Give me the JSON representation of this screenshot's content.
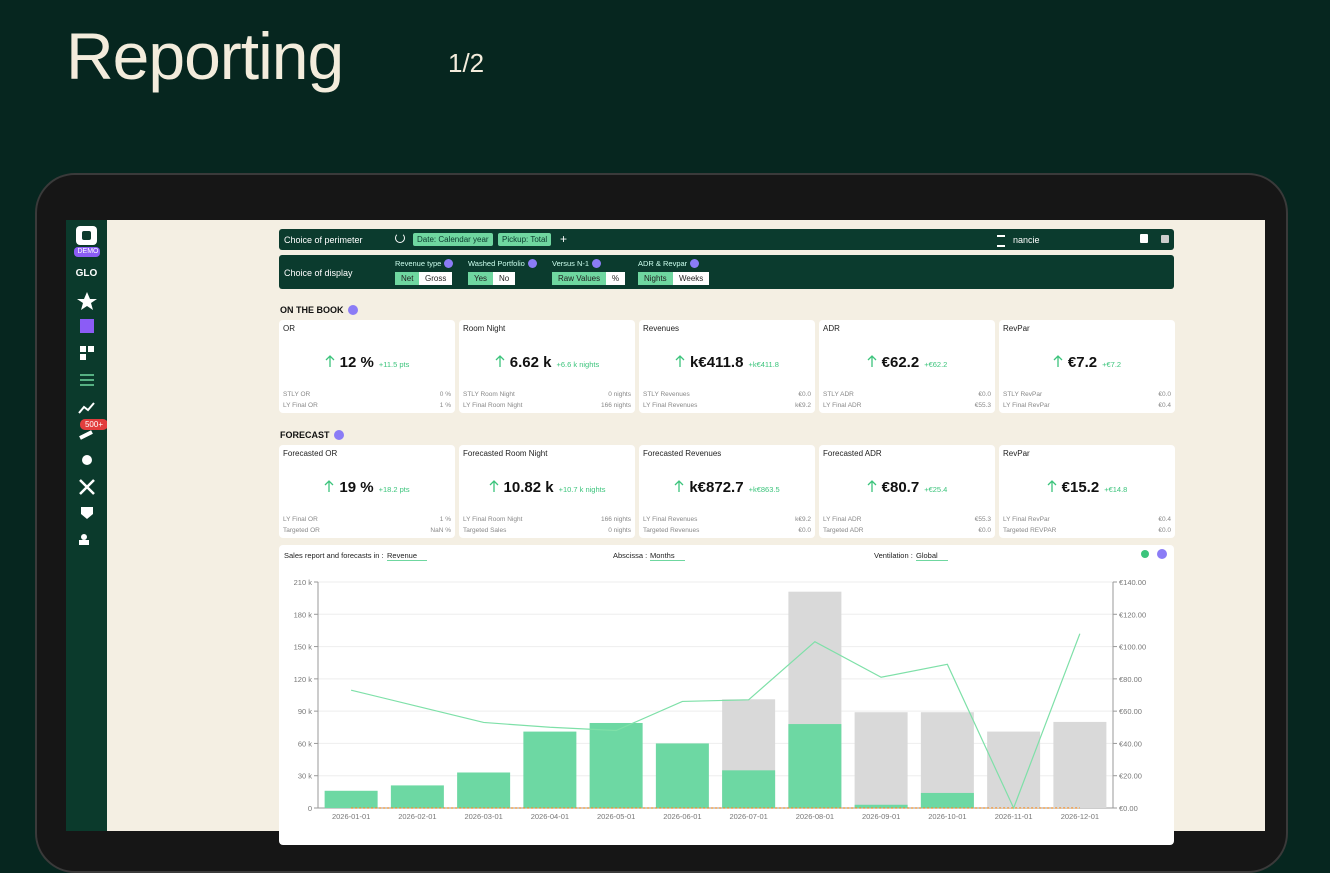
{
  "header": {
    "title": "Reporting",
    "page": "1/2"
  },
  "sidebar": {
    "badge": "DEMO",
    "workspace": "GLO",
    "notification": "500+"
  },
  "perimeter": {
    "label": "Choice of perimeter",
    "chips": [
      "Date: Calendar year",
      "Pickup: Total"
    ],
    "add": "+",
    "user": "nancie"
  },
  "display": {
    "label": "Choice of display",
    "groups": [
      {
        "title": "Revenue type",
        "options": [
          "Net",
          "Gross"
        ]
      },
      {
        "title": "Washed Portfolio",
        "options": [
          "Yes",
          "No"
        ]
      },
      {
        "title": "Versus N-1",
        "options": [
          "Raw Values",
          "%"
        ]
      },
      {
        "title": "ADR & Revpar",
        "options": [
          "Nights",
          "Weeks"
        ]
      }
    ]
  },
  "on_the_book": {
    "title": "ON THE BOOK",
    "cards": [
      {
        "title": "OR",
        "value": "12 %",
        "delta": "+11.5 pts",
        "rows": [
          [
            "STLY OR",
            "0 %"
          ],
          [
            "LY Final OR",
            "1 %"
          ]
        ]
      },
      {
        "title": "Room Night",
        "value": "6.62 k",
        "delta": "+6.6 k nights",
        "rows": [
          [
            "STLY Room Night",
            "0 nights"
          ],
          [
            "LY Final Room Night",
            "166 nights"
          ]
        ]
      },
      {
        "title": "Revenues",
        "value": "k€411.8",
        "delta": "+k€411.8",
        "rows": [
          [
            "STLY Revenues",
            "€0.0"
          ],
          [
            "LY Final Revenues",
            "k€9.2"
          ]
        ]
      },
      {
        "title": "ADR",
        "value": "€62.2",
        "delta": "+€62.2",
        "rows": [
          [
            "STLY ADR",
            "€0.0"
          ],
          [
            "LY Final ADR",
            "€55.3"
          ]
        ]
      },
      {
        "title": "RevPar",
        "value": "€7.2",
        "delta": "+€7.2",
        "rows": [
          [
            "STLY RevPar",
            "€0.0"
          ],
          [
            "LY Final RevPar",
            "€0.4"
          ]
        ]
      }
    ]
  },
  "forecast": {
    "title": "FORECAST",
    "cards": [
      {
        "title": "Forecasted OR",
        "value": "19 %",
        "delta": "+18.2 pts",
        "rows": [
          [
            "LY Final OR",
            "1 %"
          ],
          [
            "Targeted OR",
            "NaN %"
          ]
        ]
      },
      {
        "title": "Forecasted Room Night",
        "value": "10.82 k",
        "delta": "+10.7 k nights",
        "rows": [
          [
            "LY Final Room Night",
            "166 nights"
          ],
          [
            "Targeted Sales",
            "0 nights"
          ]
        ]
      },
      {
        "title": "Forecasted Revenues",
        "value": "k€872.7",
        "delta": "+k€863.5",
        "rows": [
          [
            "LY Final Revenues",
            "k€9.2"
          ],
          [
            "Targeted Revenues",
            "€0.0"
          ]
        ]
      },
      {
        "title": "Forecasted ADR",
        "value": "€80.7",
        "delta": "+€25.4",
        "rows": [
          [
            "LY Final ADR",
            "€55.3"
          ],
          [
            "Targeted ADR",
            "€0.0"
          ]
        ]
      },
      {
        "title": "RevPar",
        "value": "€15.2",
        "delta": "+€14.8",
        "rows": [
          [
            "LY Final RevPar",
            "€0.4"
          ],
          [
            "Targeted REVPAR",
            "€0.0"
          ]
        ]
      }
    ]
  },
  "chart_controls": {
    "report_label": "Sales report and forecasts in :",
    "report_value": "Revenue",
    "abscissa_label": "Abscissa :",
    "abscissa_value": "Months",
    "ventilation_label": "Ventilation :",
    "ventilation_value": "Global"
  },
  "chart_data": {
    "type": "bar",
    "categories": [
      "2026-01-01",
      "2026-02-01",
      "2026-03-01",
      "2026-04-01",
      "2026-05-01",
      "2026-06-01",
      "2026-07-01",
      "2026-08-01",
      "2026-09-01",
      "2026-10-01",
      "2026-11-01",
      "2026-12-01"
    ],
    "series": [
      {
        "color": "#d9d9d9",
        "values": [
          null,
          null,
          null,
          null,
          null,
          null,
          101000,
          201000,
          89000,
          89000,
          71000,
          80000
        ]
      },
      {
        "color": "#6dd8a3",
        "values": [
          16000,
          21000,
          33000,
          71000,
          79000,
          60000,
          35000,
          78000,
          3000,
          14000,
          0,
          0
        ]
      },
      {
        "type": "line",
        "axis": "y2",
        "color": "#7ee0a8",
        "values": [
          73,
          63,
          53,
          50,
          48,
          66,
          67,
          103,
          81,
          89,
          0,
          108
        ]
      },
      {
        "type": "line",
        "axis": "y2",
        "color": "#f08a24",
        "values": [
          0,
          0,
          0,
          0,
          0,
          0,
          0,
          0,
          0,
          0,
          0,
          0
        ]
      }
    ],
    "ylim": [
      0,
      210000
    ],
    "yticks": [
      {
        "value": 0,
        "label": "0"
      },
      {
        "value": 30000,
        "label": "30 k"
      },
      {
        "value": 60000,
        "label": "60 k"
      },
      {
        "value": 90000,
        "label": "90 k"
      },
      {
        "value": 120000,
        "label": "120 k"
      },
      {
        "value": 150000,
        "label": "150 k"
      },
      {
        "value": 180000,
        "label": "180 k"
      },
      {
        "value": 210000,
        "label": "210 k"
      }
    ],
    "y2lim": [
      0,
      140
    ],
    "y2ticks": [
      {
        "value": 0,
        "label": "€0.00"
      },
      {
        "value": 20,
        "label": "€20.00"
      },
      {
        "value": 40,
        "label": "€40.00"
      },
      {
        "value": 60,
        "label": "€60.00"
      },
      {
        "value": 80,
        "label": "€80.00"
      },
      {
        "value": 100,
        "label": "€100.00"
      },
      {
        "value": 120,
        "label": "€120.00"
      },
      {
        "value": 140,
        "label": "€140.00"
      }
    ],
    "grid": true
  }
}
